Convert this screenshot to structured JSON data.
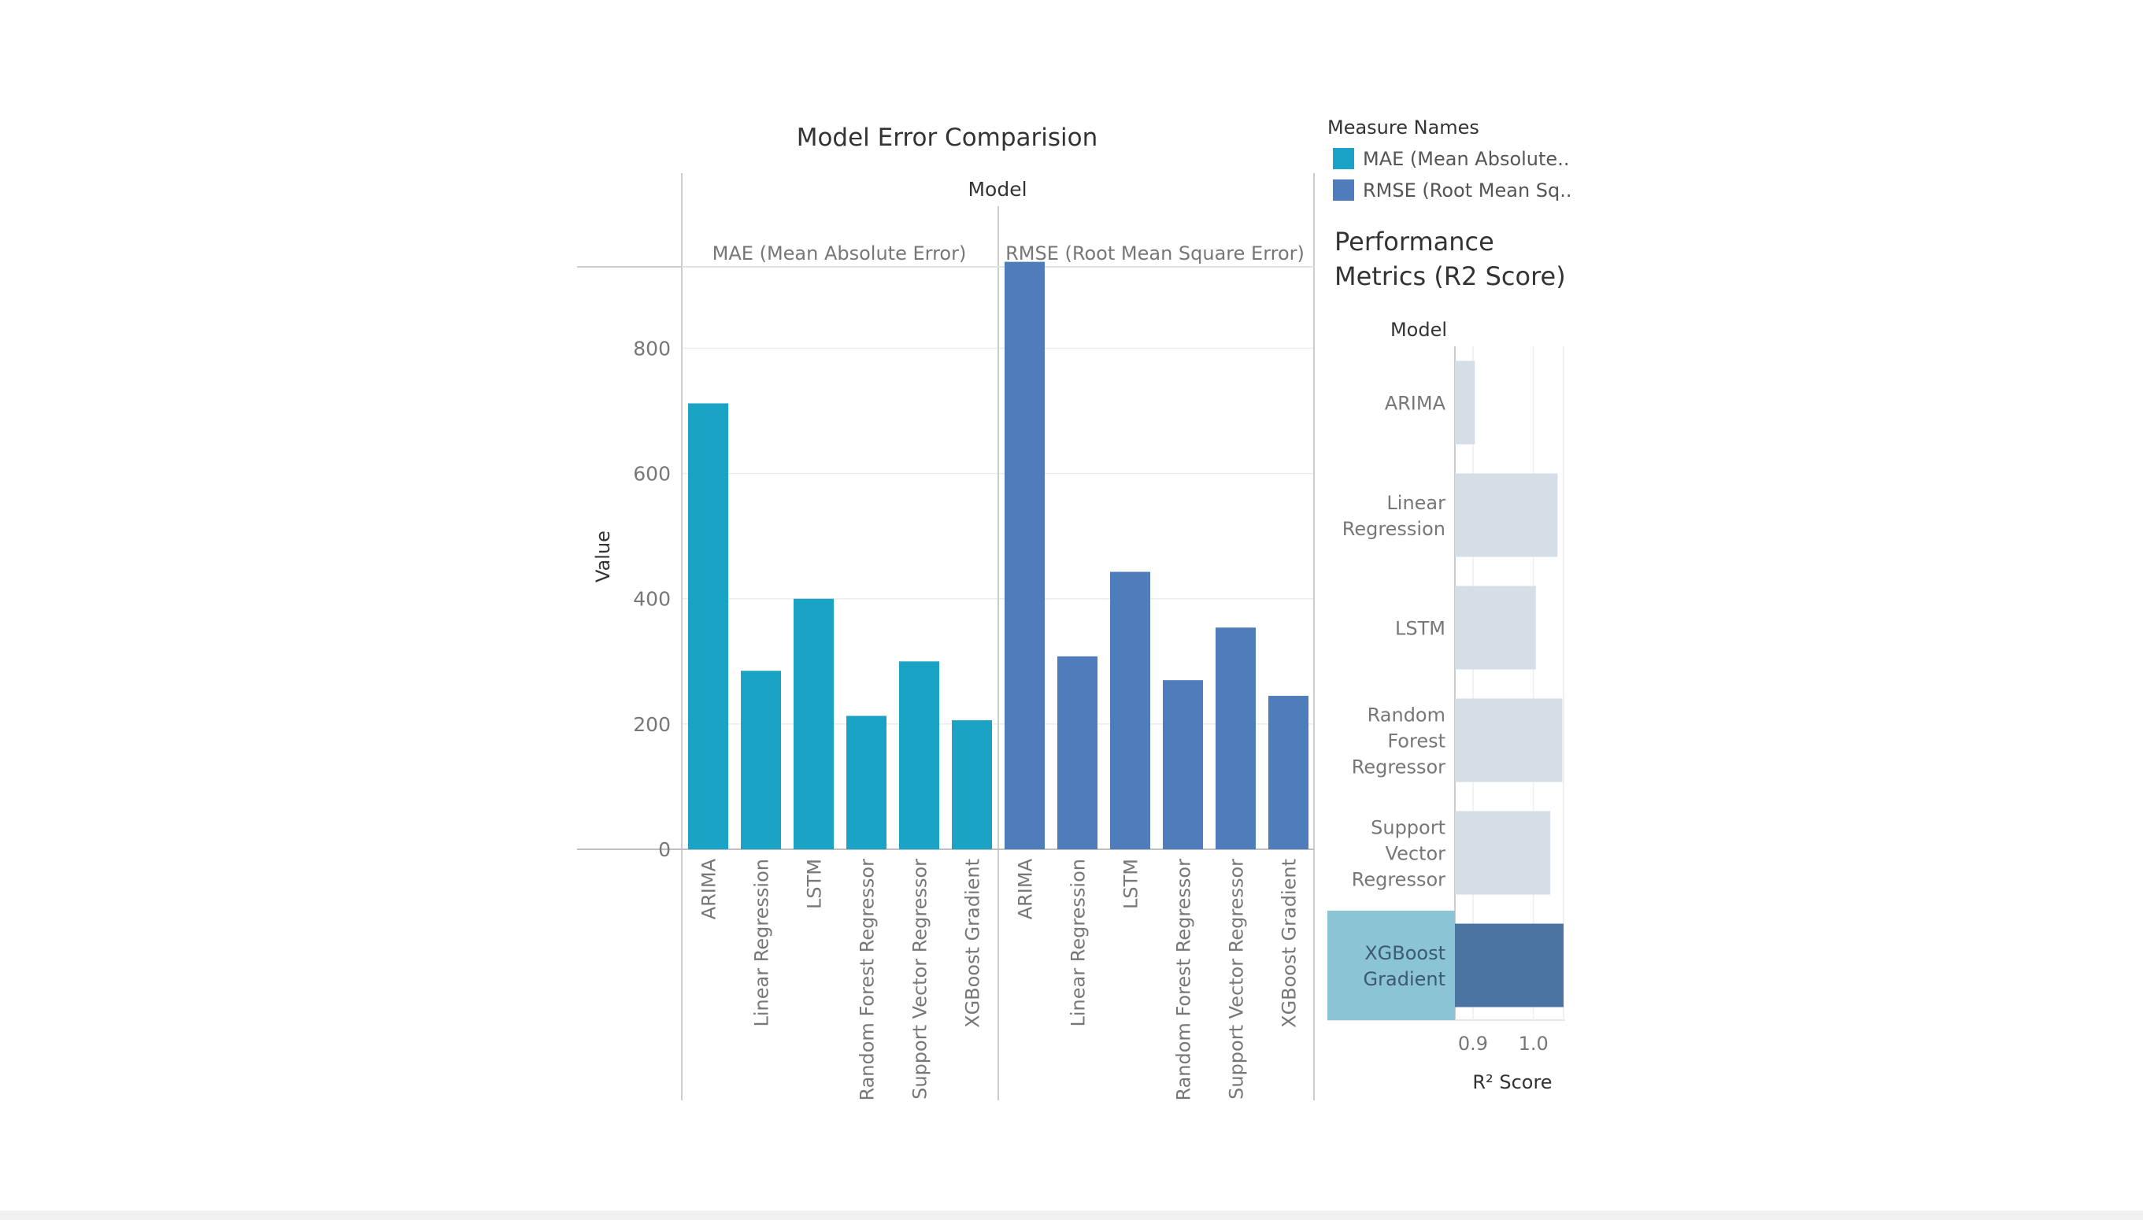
{
  "chart_data": [
    {
      "type": "bar",
      "title": "Model Error Comparision",
      "column_header": "Model",
      "ylabel": "Value",
      "ylim": [
        0,
        930
      ],
      "yticks": [
        0,
        200,
        400,
        600,
        800
      ],
      "grid": true,
      "categories": [
        "ARIMA",
        "Linear Regression",
        "LSTM",
        "Random Forest Regressor",
        "Support Vector Regressor",
        "XGBoost Gradient"
      ],
      "series": [
        {
          "name": "MAE (Mean Absolute Error)",
          "color": "#1BA3C6",
          "values": [
            712,
            285,
            400,
            213,
            300,
            206
          ]
        },
        {
          "name": "RMSE (Root Mean Square Error)",
          "color": "#4F7CBA",
          "values": [
            938,
            308,
            443,
            270,
            354,
            245
          ]
        }
      ]
    },
    {
      "type": "bar",
      "orientation": "horizontal",
      "title": "Performance Metrics (R2 Score)",
      "row_header": "Model",
      "xlabel": "R² Score",
      "xlim": [
        0.87,
        1.05
      ],
      "xticks": [
        "0.9",
        "1.0"
      ],
      "categories": [
        "ARIMA",
        "Linear Regression",
        "LSTM",
        "Random Forest Regressor",
        "Support Vector Regressor",
        "XGBoost Gradient"
      ],
      "category_lines": [
        [
          "ARIMA"
        ],
        [
          "Linear",
          "Regression"
        ],
        [
          "LSTM"
        ],
        [
          "Random",
          "Forest",
          "Regressor"
        ],
        [
          "Support",
          "Vector",
          "Regressor"
        ],
        [
          "XGBoost",
          "Gradient"
        ]
      ],
      "values": [
        0.903,
        1.04,
        1.004,
        1.048,
        1.028,
        1.05
      ],
      "bar_color": "#D5DEE6",
      "highlight_color": "#4B74A2",
      "highlight_label_bg": "#8BC4D4",
      "highlight_index": 5
    }
  ],
  "legend": {
    "title": "Measure Names",
    "items": [
      {
        "label": "MAE (Mean Absolute..",
        "color": "#1BA3C6"
      },
      {
        "label": "RMSE (Root Mean Sq..",
        "color": "#4F7CBA"
      }
    ]
  }
}
